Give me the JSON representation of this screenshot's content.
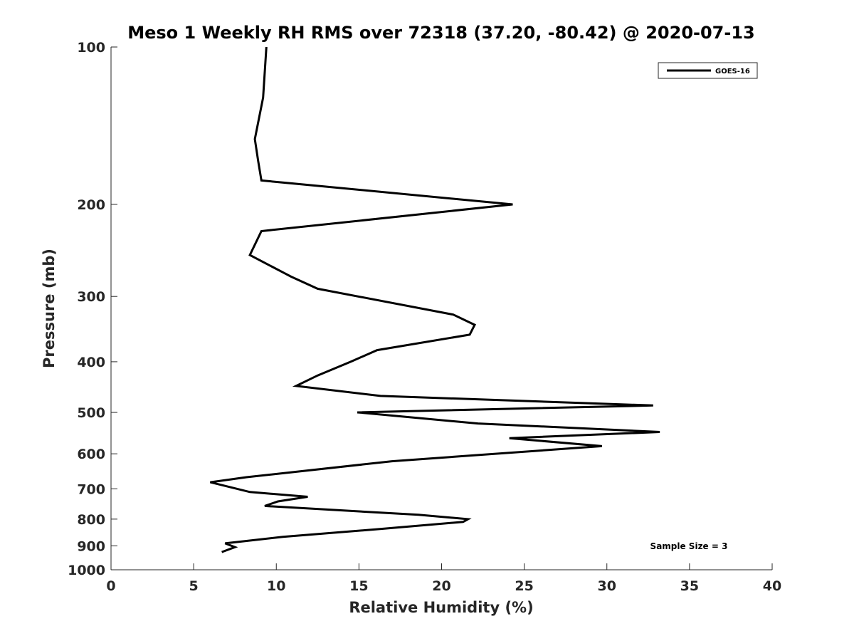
{
  "chart_data": {
    "type": "line",
    "title": "Meso 1 Weekly RH RMS over 72318 (37.20, -80.42) @ 2020-07-13",
    "xlabel": "Relative Humidity (%)",
    "ylabel": "Pressure (mb)",
    "xlim": [
      0,
      40
    ],
    "ylim": [
      1000,
      100
    ],
    "y_scale": "log",
    "grid": false,
    "legend_position": "top-right",
    "x_ticks": [
      "0",
      "5",
      "10",
      "15",
      "20",
      "25",
      "30",
      "35",
      "40"
    ],
    "y_ticks": [
      "100",
      "200",
      "300",
      "400",
      "500",
      "600",
      "700",
      "800",
      "900",
      "1000"
    ],
    "annotation": "Sample Size = 3",
    "series": [
      {
        "name": "GOES-16",
        "color": "#000000",
        "points": [
          {
            "x": 9.4,
            "p": 100
          },
          {
            "x": 9.2,
            "p": 125
          },
          {
            "x": 8.7,
            "p": 150
          },
          {
            "x": 8.9,
            "p": 165
          },
          {
            "x": 9.1,
            "p": 180
          },
          {
            "x": 24.3,
            "p": 200
          },
          {
            "x": 9.1,
            "p": 225
          },
          {
            "x": 8.4,
            "p": 250
          },
          {
            "x": 10.9,
            "p": 275
          },
          {
            "x": 12.5,
            "p": 290
          },
          {
            "x": 20.7,
            "p": 325
          },
          {
            "x": 22.0,
            "p": 340
          },
          {
            "x": 21.7,
            "p": 355
          },
          {
            "x": 16.1,
            "p": 380
          },
          {
            "x": 14.5,
            "p": 400
          },
          {
            "x": 12.5,
            "p": 425
          },
          {
            "x": 11.2,
            "p": 445
          },
          {
            "x": 16.3,
            "p": 465
          },
          {
            "x": 32.8,
            "p": 485
          },
          {
            "x": 14.9,
            "p": 500
          },
          {
            "x": 22.2,
            "p": 525
          },
          {
            "x": 33.2,
            "p": 545
          },
          {
            "x": 24.1,
            "p": 560
          },
          {
            "x": 29.7,
            "p": 580
          },
          {
            "x": 17.0,
            "p": 620
          },
          {
            "x": 8.2,
            "p": 665
          },
          {
            "x": 6.0,
            "p": 680
          },
          {
            "x": 8.4,
            "p": 710
          },
          {
            "x": 11.9,
            "p": 725
          },
          {
            "x": 10.1,
            "p": 740
          },
          {
            "x": 9.3,
            "p": 755
          },
          {
            "x": 18.6,
            "p": 785
          },
          {
            "x": 21.6,
            "p": 800
          },
          {
            "x": 21.3,
            "p": 810
          },
          {
            "x": 16.4,
            "p": 835
          },
          {
            "x": 10.4,
            "p": 865
          },
          {
            "x": 6.9,
            "p": 890
          },
          {
            "x": 7.5,
            "p": 905
          },
          {
            "x": 6.7,
            "p": 925
          }
        ]
      }
    ]
  }
}
